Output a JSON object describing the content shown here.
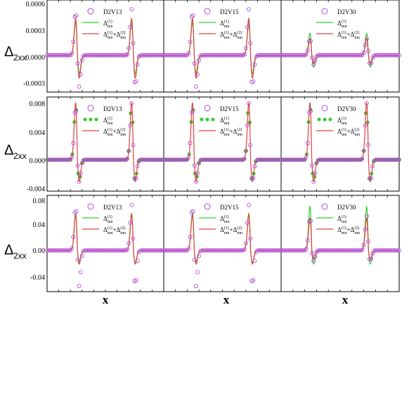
{
  "figure": {
    "ylabel": "Δ2xx",
    "ylabel_main": "Δ",
    "ylabel_sub": "2xx",
    "xlabel": "x",
    "columns": [
      "D2V13",
      "D2V15",
      "D2V30"
    ],
    "rows": [
      {
        "yticks": [
          "0.0006",
          "0.0003",
          "0.0000",
          "-0.0003"
        ]
      },
      {
        "yticks": [
          "0.008",
          "0.004",
          "0.000",
          "-0.004"
        ]
      },
      {
        "yticks": [
          "0.08",
          "0.04",
          "0.00",
          "-0.04"
        ]
      }
    ],
    "legend": {
      "marker_color": "#b04ad8",
      "l1_main": "Δ",
      "l1_sub": "mn",
      "l1_sup": "(1)",
      "l1_color": "#2fcf2f",
      "l2_main": "Δ",
      "l2_sub": "mn",
      "l2_sup": "(1)",
      "l2_plus": "+Δ",
      "l2_sub2": "mn",
      "l2_sup2": "(2)",
      "l2_color": "#e24040"
    }
  },
  "chart_data": [
    {
      "type": "line",
      "row": 1,
      "column": "D2V13",
      "ylim": [
        -0.0004,
        0.0006
      ],
      "x": [
        0,
        1
      ],
      "series": [
        {
          "name": "D2V13",
          "style": "markers",
          "peaks": {
            "pos": 0.0005,
            "neg": -0.00034
          }
        },
        {
          "name": "Δmn(1)",
          "style": "line",
          "peaks": {
            "pos": 0.00036,
            "neg": -0.0002
          }
        },
        {
          "name": "Δmn(1)+Δmn(2)",
          "style": "line",
          "peaks": {
            "pos": 0.0004,
            "neg": -0.00025
          }
        }
      ]
    },
    {
      "type": "line",
      "row": 1,
      "column": "D2V15",
      "ylim": [
        -0.0004,
        0.0006
      ],
      "x": [
        0,
        1
      ],
      "series": [
        {
          "name": "D2V15",
          "style": "markers",
          "peaks": {
            "pos": 0.0005,
            "neg": -0.00034
          }
        },
        {
          "name": "Δmn(1)",
          "style": "line",
          "peaks": {
            "pos": 0.00036,
            "neg": -0.0002
          }
        },
        {
          "name": "Δmn(1)+Δmn(2)",
          "style": "line",
          "peaks": {
            "pos": 0.0004,
            "neg": -0.00025
          }
        }
      ]
    },
    {
      "type": "line",
      "row": 1,
      "column": "D2V30",
      "ylim": [
        -0.0004,
        0.0006
      ],
      "x": [
        0,
        1
      ],
      "series": [
        {
          "name": "D2V30",
          "style": "markers",
          "peaks": {
            "pos": 0.00018,
            "neg": -0.0001
          }
        },
        {
          "name": "Δmn(1)",
          "style": "line",
          "peaks": {
            "pos": 0.00024,
            "neg": -0.00013
          }
        },
        {
          "name": "Δmn(1)+Δmn(2)",
          "style": "line",
          "peaks": {
            "pos": 0.00018,
            "neg": -9e-05
          }
        }
      ]
    },
    {
      "type": "line",
      "row": 2,
      "column": "D2V13",
      "ylim": [
        -0.004,
        0.008
      ],
      "x": [
        0,
        1
      ],
      "series": [
        {
          "name": "D2V13",
          "style": "markers",
          "peaks": {
            "pos": 0.0072,
            "neg": -0.0028
          }
        },
        {
          "name": "Δmn(1)",
          "style": "dots",
          "peaks": {
            "pos": 0.0074,
            "neg": -0.0027
          }
        },
        {
          "name": "Δmn(1)+Δmn(2)",
          "style": "line",
          "peaks": {
            "pos": 0.0073,
            "neg": -0.0028
          }
        }
      ]
    },
    {
      "type": "line",
      "row": 2,
      "column": "D2V15",
      "ylim": [
        -0.004,
        0.008
      ],
      "x": [
        0,
        1
      ],
      "series": [
        {
          "name": "D2V15",
          "style": "markers",
          "peaks": {
            "pos": 0.0072,
            "neg": -0.0028
          }
        },
        {
          "name": "Δmn(1)",
          "style": "dots",
          "peaks": {
            "pos": 0.0074,
            "neg": -0.0027
          }
        },
        {
          "name": "Δmn(1)+Δmn(2)",
          "style": "line",
          "peaks": {
            "pos": 0.0073,
            "neg": -0.0028
          }
        }
      ]
    },
    {
      "type": "line",
      "row": 2,
      "column": "D2V30",
      "ylim": [
        -0.004,
        0.008
      ],
      "x": [
        0,
        1
      ],
      "series": [
        {
          "name": "D2V30",
          "style": "markers",
          "peaks": {
            "pos": 0.0072,
            "neg": -0.0028
          }
        },
        {
          "name": "Δmn(1)",
          "style": "dots",
          "peaks": {
            "pos": 0.0074,
            "neg": -0.0027
          }
        },
        {
          "name": "Δmn(1)+Δmn(2)",
          "style": "line",
          "peaks": {
            "pos": 0.0073,
            "neg": -0.0028
          }
        }
      ]
    },
    {
      "type": "line",
      "row": 3,
      "column": "D2V13",
      "ylim": [
        -0.06,
        0.08
      ],
      "x": [
        0,
        1
      ],
      "series": [
        {
          "name": "D2V13",
          "style": "markers",
          "peaks": {
            "pos": 0.066,
            "neg": -0.052
          }
        },
        {
          "name": "Δmn(1)",
          "style": "line",
          "peaks": {
            "pos": 0.054,
            "neg": -0.018
          }
        },
        {
          "name": "Δmn(1)+Δmn(2)",
          "style": "line",
          "peaks": {
            "pos": 0.052,
            "neg": -0.02
          }
        }
      ]
    },
    {
      "type": "line",
      "row": 3,
      "column": "D2V15",
      "ylim": [
        -0.06,
        0.08
      ],
      "x": [
        0,
        1
      ],
      "series": [
        {
          "name": "D2V15",
          "style": "markers",
          "peaks": {
            "pos": 0.066,
            "neg": -0.052
          }
        },
        {
          "name": "Δmn(1)",
          "style": "line",
          "peaks": {
            "pos": 0.054,
            "neg": -0.018
          }
        },
        {
          "name": "Δmn(1)+Δmn(2)",
          "style": "line",
          "peaks": {
            "pos": 0.052,
            "neg": -0.02
          }
        }
      ]
    },
    {
      "type": "line",
      "row": 3,
      "column": "D2V30",
      "ylim": [
        -0.06,
        0.08
      ],
      "x": [
        0,
        1
      ],
      "series": [
        {
          "name": "D2V30",
          "style": "markers",
          "peaks": {
            "pos": 0.05,
            "neg": -0.015
          }
        },
        {
          "name": "Δmn(1)",
          "style": "line",
          "peaks": {
            "pos": 0.064,
            "neg": -0.02
          }
        },
        {
          "name": "Δmn(1)+Δmn(2)",
          "style": "line",
          "peaks": {
            "pos": 0.047,
            "neg": -0.013
          }
        }
      ]
    }
  ]
}
